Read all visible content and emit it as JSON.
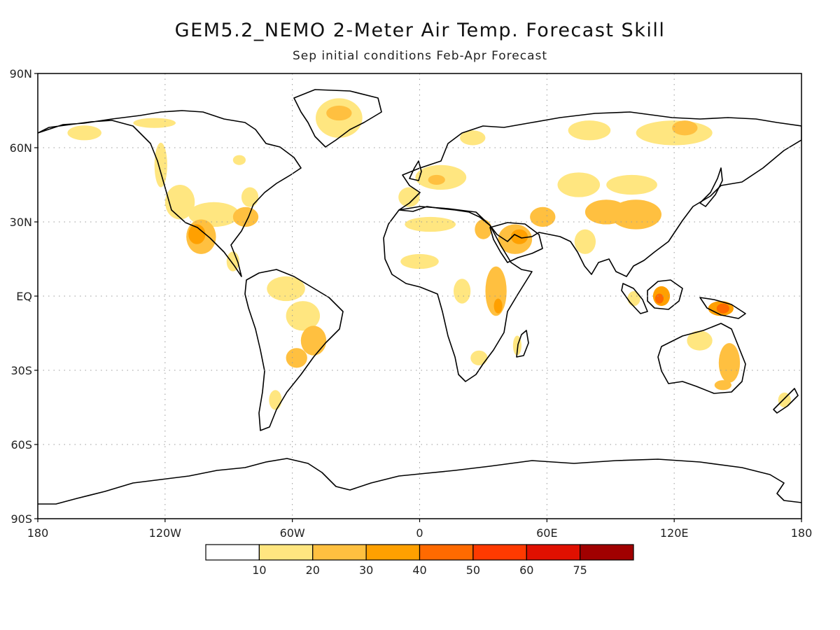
{
  "title": "GEM5.2_NEMO 2-Meter Air Temp. Forecast Skill",
  "subtitle": "Sep initial conditions  Feb-Apr Forecast",
  "map": {
    "projection": "cylindrical-equidistant",
    "lon_range": [
      -180,
      180
    ],
    "lat_range": [
      -90,
      90
    ],
    "gridlines": "dotted",
    "lat_ticks": [
      {
        "value": 90,
        "label": "90N"
      },
      {
        "value": 60,
        "label": "60N"
      },
      {
        "value": 30,
        "label": "30N"
      },
      {
        "value": 0,
        "label": "EQ"
      },
      {
        "value": -30,
        "label": "30S"
      },
      {
        "value": -60,
        "label": "60S"
      },
      {
        "value": -90,
        "label": "90S"
      }
    ],
    "lon_ticks": [
      {
        "value": -180,
        "label": "180"
      },
      {
        "value": -120,
        "label": "120W"
      },
      {
        "value": -60,
        "label": "60W"
      },
      {
        "value": 0,
        "label": "0"
      },
      {
        "value": 60,
        "label": "60E"
      },
      {
        "value": 120,
        "label": "120E"
      },
      {
        "value": 180,
        "label": "180"
      }
    ]
  },
  "colorbar": {
    "bins": [
      {
        "color": "#ffffff",
        "label": ""
      },
      {
        "color": "#ffe680",
        "label": "10"
      },
      {
        "color": "#ffc040",
        "label": "20"
      },
      {
        "color": "#ffa000",
        "label": "30"
      },
      {
        "color": "#ff6a00",
        "label": "40"
      },
      {
        "color": "#ff3a00",
        "label": "50"
      },
      {
        "color": "#e01000",
        "label": "60"
      },
      {
        "color": "#a00000",
        "label": "75"
      }
    ]
  },
  "skill_regions": [
    {
      "name": "Greenland interior",
      "lon": -38,
      "lat": 72,
      "rlon": 11,
      "rlat": 8,
      "level": 1
    },
    {
      "name": "Greenland core",
      "lon": -38,
      "lat": 74,
      "rlon": 6,
      "rlat": 3,
      "level": 2
    },
    {
      "name": "Alaska",
      "lon": -158,
      "lat": 66,
      "rlon": 8,
      "rlat": 3,
      "level": 1
    },
    {
      "name": "Northern Canada",
      "lon": -125,
      "lat": 70,
      "rlon": 10,
      "rlat": 2,
      "level": 1
    },
    {
      "name": "Western Canada coast",
      "lon": -122,
      "lat": 53,
      "rlon": 3,
      "rlat": 9,
      "level": 1
    },
    {
      "name": "Western Canada small",
      "lon": -85,
      "lat": 55,
      "rlon": 3,
      "rlat": 2,
      "level": 1
    },
    {
      "name": "US west interior",
      "lon": -113,
      "lat": 38,
      "rlon": 7,
      "rlat": 7,
      "level": 1
    },
    {
      "name": "US south",
      "lon": -97,
      "lat": 33,
      "rlon": 12,
      "rlat": 5,
      "level": 1
    },
    {
      "name": "US southeast",
      "lon": -82,
      "lat": 32,
      "rlon": 6,
      "rlat": 4,
      "level": 2
    },
    {
      "name": "Eastern US",
      "lon": -80,
      "lat": 40,
      "rlon": 4,
      "rlat": 4,
      "level": 1
    },
    {
      "name": "Mexico",
      "lon": -103,
      "lat": 24,
      "rlon": 7,
      "rlat": 7,
      "level": 2
    },
    {
      "name": "Mexico core",
      "lon": -105,
      "lat": 25,
      "rlon": 4,
      "rlat": 4,
      "level": 3
    },
    {
      "name": "Central America",
      "lon": -88,
      "lat": 14,
      "rlon": 3,
      "rlat": 4,
      "level": 1
    },
    {
      "name": "Amazon north",
      "lon": -63,
      "lat": 3,
      "rlon": 9,
      "rlat": 5,
      "level": 1
    },
    {
      "name": "Amazon central",
      "lon": -55,
      "lat": -8,
      "rlon": 8,
      "rlat": 6,
      "level": 1
    },
    {
      "name": "Brazil",
      "lon": -50,
      "lat": -18,
      "rlon": 6,
      "rlat": 6,
      "level": 2
    },
    {
      "name": "Paraguay",
      "lon": -58,
      "lat": -25,
      "rlon": 5,
      "rlat": 4,
      "level": 2
    },
    {
      "name": "Patagonia",
      "lon": -68,
      "lat": -42,
      "rlon": 3,
      "rlat": 4,
      "level": 1
    },
    {
      "name": "Iberia",
      "lon": -5,
      "lat": 40,
      "rlon": 5,
      "rlat": 4,
      "level": 1
    },
    {
      "name": "Europe",
      "lon": 10,
      "lat": 48,
      "rlon": 12,
      "rlat": 5,
      "level": 1
    },
    {
      "name": "Europe core",
      "lon": 8,
      "lat": 47,
      "rlon": 4,
      "rlat": 2,
      "level": 2
    },
    {
      "name": "Scandinavia",
      "lon": 25,
      "lat": 64,
      "rlon": 6,
      "rlat": 3,
      "level": 1
    },
    {
      "name": "Siberia",
      "lon": 80,
      "lat": 67,
      "rlon": 10,
      "rlat": 4,
      "level": 1
    },
    {
      "name": "East Siberia",
      "lon": 120,
      "lat": 66,
      "rlon": 18,
      "rlat": 5,
      "level": 1
    },
    {
      "name": "East Siberia core",
      "lon": 125,
      "lat": 68,
      "rlon": 6,
      "rlat": 3,
      "level": 2
    },
    {
      "name": "Northern Africa",
      "lon": 5,
      "lat": 29,
      "rlon": 12,
      "rlat": 3,
      "level": 1
    },
    {
      "name": "Egypt",
      "lon": 30,
      "lat": 27,
      "rlon": 4,
      "rlat": 4,
      "level": 2
    },
    {
      "name": "Arabia",
      "lon": 45,
      "lat": 23,
      "rlon": 8,
      "rlat": 6,
      "level": 2
    },
    {
      "name": "Arabia core",
      "lon": 47,
      "lat": 24,
      "rlon": 4,
      "rlat": 3,
      "level": 3
    },
    {
      "name": "Iran",
      "lon": 58,
      "lat": 32,
      "rlon": 6,
      "rlat": 4,
      "level": 2
    },
    {
      "name": "Central Asia",
      "lon": 75,
      "lat": 45,
      "rlon": 10,
      "rlat": 5,
      "level": 1
    },
    {
      "name": "Tibet",
      "lon": 88,
      "lat": 34,
      "rlon": 10,
      "rlat": 5,
      "level": 2
    },
    {
      "name": "China",
      "lon": 102,
      "lat": 33,
      "rlon": 12,
      "rlat": 6,
      "level": 2
    },
    {
      "name": "Mongolia",
      "lon": 100,
      "lat": 45,
      "rlon": 12,
      "rlat": 4,
      "level": 1
    },
    {
      "name": "India",
      "lon": 78,
      "lat": 22,
      "rlon": 5,
      "rlat": 5,
      "level": 1
    },
    {
      "name": "Sahel",
      "lon": 0,
      "lat": 14,
      "rlon": 9,
      "rlat": 3,
      "level": 1
    },
    {
      "name": "Central Africa",
      "lon": 20,
      "lat": 2,
      "rlon": 4,
      "rlat": 5,
      "level": 1
    },
    {
      "name": "East Africa",
      "lon": 36,
      "lat": 2,
      "rlon": 5,
      "rlat": 10,
      "level": 2
    },
    {
      "name": "East Africa core",
      "lon": 37,
      "lat": -4,
      "rlon": 2,
      "rlat": 3,
      "level": 3
    },
    {
      "name": "Madagascar",
      "lon": 46,
      "lat": -20,
      "rlon": 2,
      "rlat": 4,
      "level": 1
    },
    {
      "name": "Southern Africa",
      "lon": 28,
      "lat": -25,
      "rlon": 4,
      "rlat": 3,
      "level": 1
    },
    {
      "name": "Borneo",
      "lon": 114,
      "lat": 0,
      "rlon": 4,
      "rlat": 4,
      "level": 3
    },
    {
      "name": "Borneo core",
      "lon": 113,
      "lat": -1,
      "rlon": 2,
      "rlat": 2,
      "level": 4
    },
    {
      "name": "Sumatra",
      "lon": 101,
      "lat": -1,
      "rlon": 3,
      "rlat": 3,
      "level": 1
    },
    {
      "name": "New Guinea",
      "lon": 142,
      "lat": -5,
      "rlon": 6,
      "rlat": 3,
      "level": 3
    },
    {
      "name": "New Guinea core",
      "lon": 143,
      "lat": -5,
      "rlon": 3,
      "rlat": 2,
      "level": 4
    },
    {
      "name": "Eastern Australia",
      "lon": 146,
      "lat": -27,
      "rlon": 5,
      "rlat": 8,
      "level": 2
    },
    {
      "name": "Northern Australia",
      "lon": 132,
      "lat": -18,
      "rlon": 6,
      "rlat": 4,
      "level": 1
    },
    {
      "name": "SE Australia",
      "lon": 143,
      "lat": -36,
      "rlon": 4,
      "rlat": 2,
      "level": 2
    },
    {
      "name": "New Zealand",
      "lon": 172,
      "lat": -42,
      "rlon": 3,
      "rlat": 3,
      "level": 1
    }
  ]
}
